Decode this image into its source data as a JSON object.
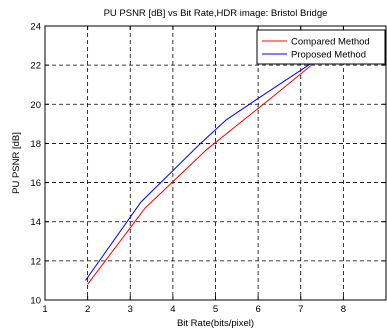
{
  "chart_data": {
    "type": "line",
    "title": "PU PSNR [dB] vs Bit Rate,HDR image: Bristol Bridge",
    "xlabel": "Bit Rate(bits/pixel)",
    "ylabel": "PU PSNR [dB]",
    "xlim": [
      1,
      9
    ],
    "ylim": [
      10,
      24
    ],
    "xticks": [
      1,
      2,
      3,
      4,
      5,
      6,
      7,
      8
    ],
    "yticks": [
      10,
      12,
      14,
      16,
      18,
      20,
      22,
      24
    ],
    "grid": true,
    "grid_style": "dashed",
    "legend_position": "top-right",
    "series": [
      {
        "name": "Compared Method",
        "color": "#ff0000",
        "x": [
          2.0,
          3.35,
          4.8,
          6.35,
          7.7
        ],
        "y": [
          10.8,
          14.7,
          17.7,
          20.4,
          22.8
        ]
      },
      {
        "name": "Proposed Method",
        "color": "#0000ff",
        "x": [
          1.95,
          3.25,
          4.65,
          5.25,
          6.0,
          7.6
        ],
        "y": [
          11.0,
          15.0,
          18.0,
          19.2,
          20.3,
          22.6
        ]
      }
    ]
  }
}
